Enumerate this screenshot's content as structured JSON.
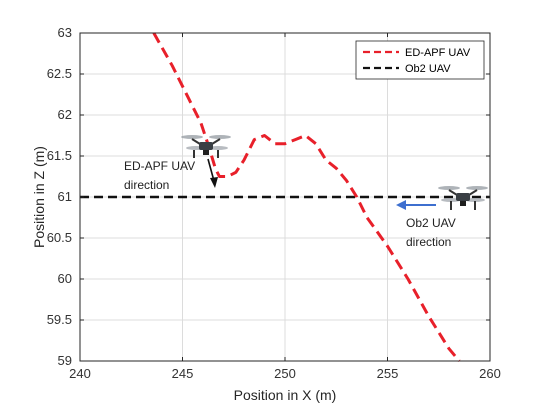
{
  "chart_data": {
    "type": "line",
    "xlabel": "Position in X (m)",
    "ylabel": "Position in Z (m)",
    "xlim": [
      240,
      260
    ],
    "ylim": [
      59,
      63
    ],
    "xticks": [
      "240",
      "245",
      "250",
      "255",
      "260"
    ],
    "yticks": [
      "59",
      "59.5",
      "60",
      "60.5",
      "61",
      "61.5",
      "62",
      "62.5",
      "63"
    ],
    "grid": true,
    "legend_position": "top-right",
    "series": [
      {
        "name": "ED-APF UAV",
        "color": "#e8202a",
        "style": "dashed",
        "x": [
          243.6,
          244.5,
          245.3,
          245.9,
          246.3,
          246.6,
          246.8,
          247.2,
          247.6,
          248.0,
          248.5,
          249.0,
          249.5,
          250.0,
          250.5,
          251.0,
          251.5,
          252.0,
          252.5,
          253.0,
          253.5,
          254.0,
          255.0,
          256.0,
          257.0,
          258.0,
          258.5
        ],
        "y": [
          63.0,
          62.6,
          62.2,
          61.9,
          61.6,
          61.35,
          61.25,
          61.25,
          61.3,
          61.45,
          61.7,
          61.75,
          61.65,
          61.65,
          61.7,
          61.75,
          61.65,
          61.45,
          61.35,
          61.2,
          61.0,
          60.75,
          60.4,
          60.0,
          59.55,
          59.15,
          59.0
        ]
      },
      {
        "name": "Ob2 UAV",
        "color": "#111111",
        "style": "dashed",
        "x": [
          240,
          260
        ],
        "y": [
          61,
          61
        ]
      }
    ],
    "annotations": [
      {
        "text_lines": [
          "ED-APF UAV",
          "direction"
        ],
        "icon": "black-arrow-icon"
      },
      {
        "text_lines": [
          "Ob2 UAV",
          "direction"
        ],
        "icon": "blue-arrow-icon"
      }
    ]
  }
}
